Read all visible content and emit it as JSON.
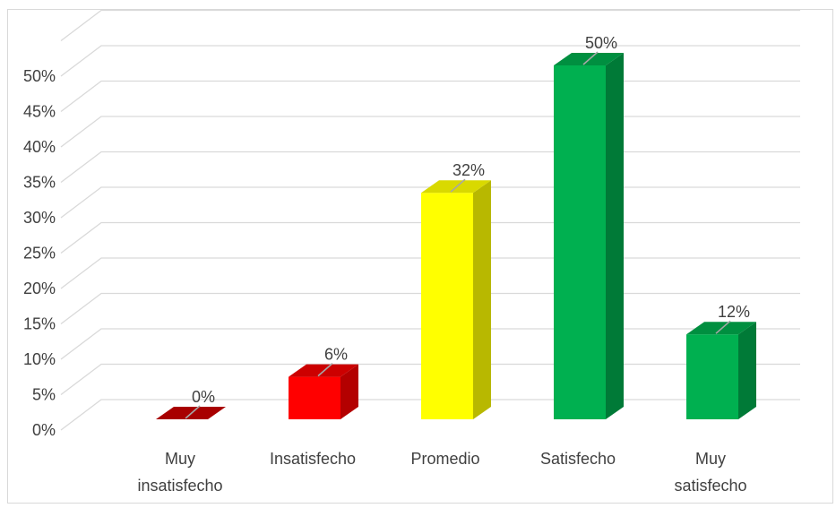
{
  "chart_data": {
    "type": "bar",
    "style": "3d-column",
    "categories": [
      [
        "Muy",
        "insatisfecho"
      ],
      [
        "Insatisfecho"
      ],
      [
        "Promedio"
      ],
      [
        "Satisfecho"
      ],
      [
        "Muy",
        "satisfecho"
      ]
    ],
    "values": [
      0,
      6,
      32,
      50,
      12
    ],
    "data_labels": [
      "0%",
      "6%",
      "32%",
      "50%",
      "12%"
    ],
    "y_ticks": [
      "0%",
      "5%",
      "10%",
      "15%",
      "20%",
      "25%",
      "30%",
      "35%",
      "40%",
      "45%",
      "50%"
    ],
    "ylim": [
      0,
      55
    ],
    "grid": true,
    "legend": "none",
    "colors": {
      "front": [
        "#c00000",
        "#ff0000",
        "#ffff00",
        "#00b050",
        "#00b050"
      ],
      "side": [
        "#9c0000",
        "#b30000",
        "#b8b800",
        "#007a37",
        "#007a37"
      ],
      "top": [
        "#a80000",
        "#cc0000",
        "#d9d900",
        "#008f40",
        "#008f40"
      ],
      "gridline": "#d9d9d9",
      "leader": "#a6a6a6"
    }
  }
}
